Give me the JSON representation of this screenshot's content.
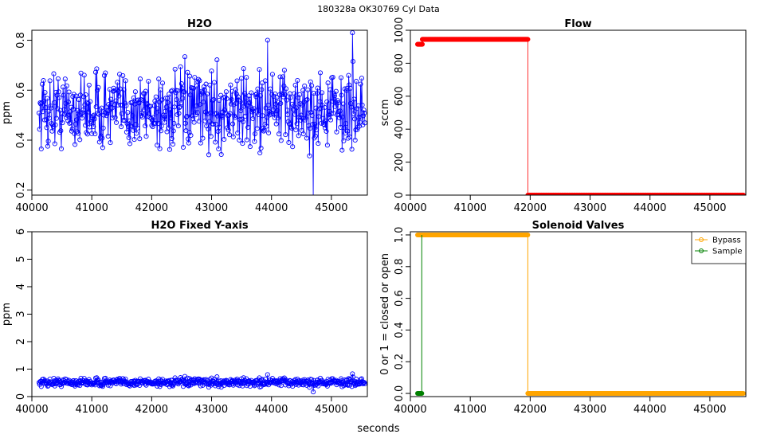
{
  "figure": {
    "suptitle": "180328a    OK30769    Cyl Data",
    "xlabel": "seconds"
  },
  "chart_data": [
    {
      "type": "line",
      "title": "H2O",
      "xlabel": "",
      "ylabel": "ppm",
      "xlim": [
        40000,
        45600
      ],
      "ylim": [
        0.18,
        0.84
      ],
      "xticks": [
        40000,
        41000,
        42000,
        43000,
        44000,
        45000
      ],
      "yticks": [
        0.2,
        0.4,
        0.6,
        0.8
      ],
      "grid": false,
      "series": [
        {
          "color": "#0000ff",
          "markers": "open-circle",
          "x_start": 40120,
          "x_end": 45560,
          "n_points": 600,
          "mean": 0.52,
          "min": 0.17,
          "max": 0.83
        }
      ]
    },
    {
      "type": "scatter",
      "title": "Flow",
      "xlabel": "",
      "ylabel": "sccm",
      "xlim": [
        40000,
        45600
      ],
      "ylim": [
        0,
        1000
      ],
      "xticks": [
        40000,
        41000,
        42000,
        43000,
        44000,
        45000
      ],
      "yticks": [
        0,
        200,
        400,
        600,
        800,
        1000
      ],
      "grid": false,
      "series": [
        {
          "color": "#ff0000",
          "markers": "filled-circle",
          "segments": [
            {
              "x": [
                40120,
                40200
              ],
              "y": [
                915,
                915
              ]
            },
            {
              "x": [
                40200,
                41960
              ],
              "y": [
                945,
                945
              ]
            },
            {
              "x": [
                41960,
                45560
              ],
              "y": [
                0,
                0
              ]
            }
          ]
        }
      ]
    },
    {
      "type": "line",
      "title": "H2O Fixed Y-axis",
      "xlabel": "",
      "ylabel": "ppm",
      "xlim": [
        40000,
        45600
      ],
      "ylim": [
        0,
        6
      ],
      "xticks": [
        40000,
        41000,
        42000,
        43000,
        44000,
        45000
      ],
      "yticks": [
        0,
        1,
        2,
        3,
        4,
        5,
        6
      ],
      "grid": false,
      "series": [
        {
          "color": "#0000ff",
          "markers": "open-circle",
          "x_start": 40120,
          "x_end": 45560,
          "n_points": 600,
          "mean": 0.52,
          "min": 0.17,
          "max": 0.83
        }
      ]
    },
    {
      "type": "line",
      "title": "Solenoid Valves",
      "xlabel": "",
      "ylabel": "0 or 1 = closed or open",
      "xlim": [
        40000,
        45600
      ],
      "ylim": [
        -0.02,
        1.02
      ],
      "xticks": [
        40000,
        41000,
        42000,
        43000,
        44000,
        45000
      ],
      "yticks": [
        0.0,
        0.2,
        0.4,
        0.6,
        0.8,
        1.0
      ],
      "grid": false,
      "legend_position": "top-right",
      "series": [
        {
          "name": "Bypass",
          "color": "#ffa500",
          "segments": [
            {
              "x": [
                40120,
                41960
              ],
              "y": [
                1,
                1
              ]
            },
            {
              "x": [
                41960,
                45560
              ],
              "y": [
                0,
                0
              ]
            }
          ]
        },
        {
          "name": "Sample",
          "color": "#008000",
          "segments": [
            {
              "x": [
                40120,
                40190
              ],
              "y": [
                0,
                0
              ]
            },
            {
              "x": [
                40190,
                40190
              ],
              "y": [
                0,
                1
              ]
            }
          ]
        }
      ]
    }
  ]
}
